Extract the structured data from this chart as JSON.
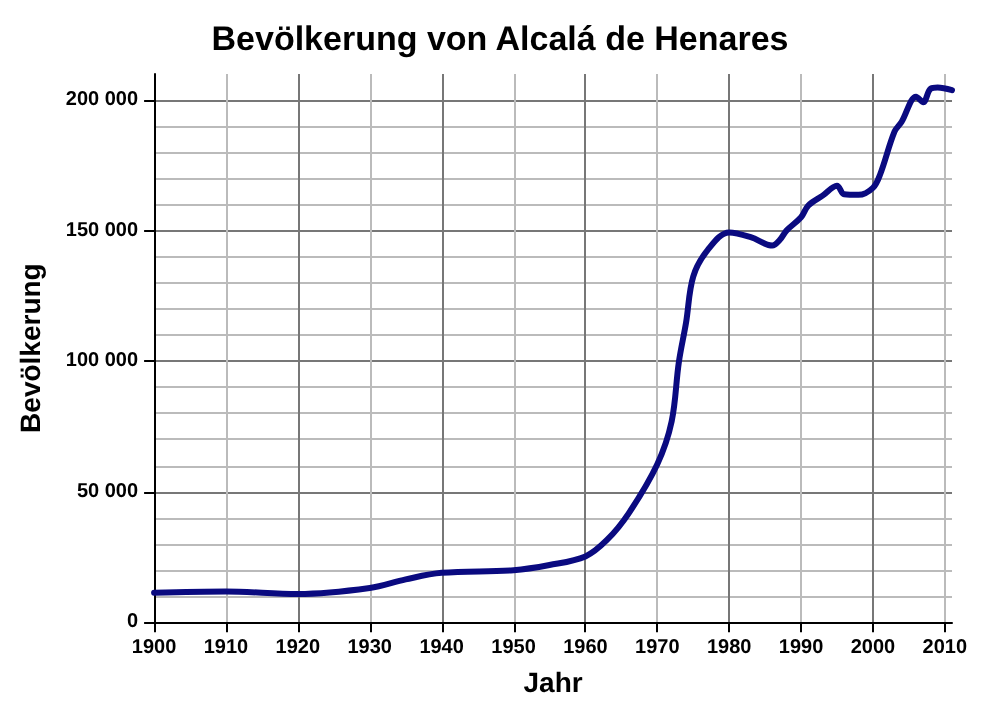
{
  "chart_data": {
    "type": "line",
    "title": "Bevölkerung von Alcalá de Henares",
    "xlabel": "Jahr",
    "ylabel": "Bevölkerung",
    "x": [
      1900,
      1910,
      1920,
      1930,
      1935,
      1940,
      1950,
      1955,
      1960,
      1963,
      1966,
      1970,
      1972,
      1973,
      1974,
      1975,
      1977,
      1980,
      1983,
      1986,
      1987,
      1988,
      1990,
      1991,
      1993,
      1995,
      1996,
      1998,
      2000,
      2001,
      2003,
      2004,
      2006,
      2007,
      2008,
      2009,
      2011
    ],
    "series": [
      {
        "color": "#0a0a80",
        "values": [
          11300,
          11800,
          10800,
          13100,
          16400,
          18900,
          19900,
          21900,
          25200,
          31500,
          41600,
          60500,
          76900,
          99600,
          114700,
          132400,
          142500,
          149300,
          147500,
          144300,
          146300,
          150100,
          155100,
          159600,
          163400,
          167200,
          163900,
          163700,
          166400,
          171500,
          187900,
          191700,
          201300,
          199200,
          204300,
          204800,
          203800
        ]
      }
    ],
    "xlim": [
      1900,
      2011
    ],
    "xticks": [
      1900,
      1910,
      1920,
      1930,
      1940,
      1950,
      1960,
      1970,
      1980,
      1990,
      2000,
      2010
    ],
    "ylim": [
      0,
      210000
    ],
    "yticks": [
      0,
      {
        "value": 50000,
        "label": "50 000"
      },
      {
        "value": 100000,
        "label": "100 000"
      },
      {
        "value": 150000,
        "label": "150 000"
      },
      {
        "value": 200000,
        "label": "200 000"
      }
    ],
    "grid": true,
    "marker": "none",
    "line_style": "solid"
  }
}
